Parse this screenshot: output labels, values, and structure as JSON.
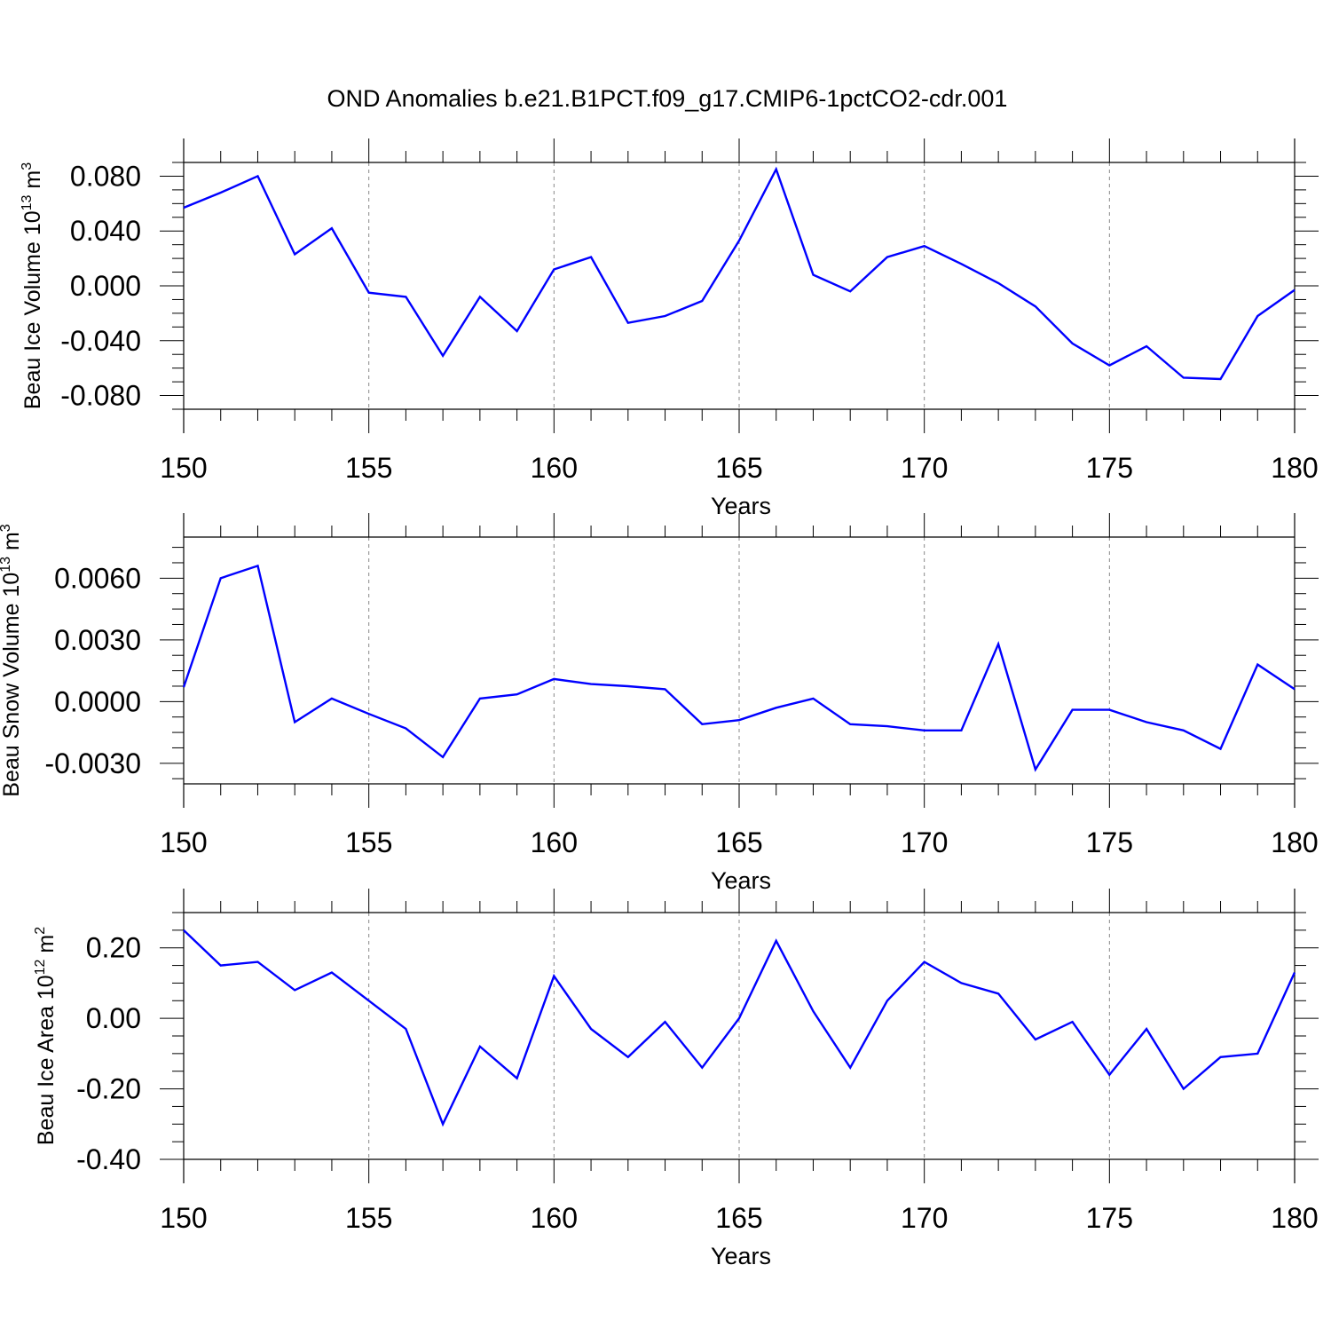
{
  "title": "OND Anomalies b.e21.B1PCT.f09_g17.CMIP6-1pctCO2-cdr.001",
  "line_color": "#0000ff",
  "chart_data": [
    {
      "type": "line",
      "ylabel": {
        "main": "Beau Ice Volume 10",
        "exp": "13",
        "unit": " m",
        "unit_exp": "3"
      },
      "xlabel": "Years",
      "xlim": [
        150,
        180
      ],
      "ylim": [
        -0.09,
        0.09
      ],
      "xticks": [
        "150",
        "155",
        "160",
        "165",
        "170",
        "175",
        "180"
      ],
      "yticks": [
        "0.080",
        "0.040",
        "0.000",
        "-0.040",
        "-0.080"
      ],
      "x": [
        150,
        151,
        152,
        153,
        154,
        155,
        156,
        157,
        158,
        159,
        160,
        161,
        162,
        163,
        164,
        165,
        166,
        167,
        168,
        169,
        170,
        171,
        172,
        173,
        174,
        175,
        176,
        177,
        178,
        179,
        180
      ],
      "values": [
        0.057,
        0.068,
        0.08,
        0.023,
        0.042,
        -0.005,
        -0.008,
        -0.051,
        -0.008,
        -0.033,
        0.012,
        0.021,
        -0.027,
        -0.022,
        -0.011,
        0.033,
        0.085,
        0.008,
        -0.004,
        0.021,
        0.029,
        0.016,
        0.002,
        -0.015,
        -0.042,
        -0.058,
        -0.044,
        -0.067,
        -0.068,
        -0.022,
        -0.003
      ]
    },
    {
      "type": "line",
      "ylabel": {
        "main": "Beau Snow Volume 10",
        "exp": "13",
        "unit": " m",
        "unit_exp": "3"
      },
      "xlabel": "Years",
      "xlim": [
        150,
        180
      ],
      "ylim": [
        -0.004,
        0.008
      ],
      "xticks": [
        "150",
        "155",
        "160",
        "165",
        "170",
        "175",
        "180"
      ],
      "yticks": [
        "0.0060",
        "0.0030",
        "0.0000",
        "-0.0030"
      ],
      "x": [
        150,
        151,
        152,
        153,
        154,
        155,
        156,
        157,
        158,
        159,
        160,
        161,
        162,
        163,
        164,
        165,
        166,
        167,
        168,
        169,
        170,
        171,
        172,
        173,
        174,
        175,
        176,
        177,
        178,
        179,
        180
      ],
      "values": [
        0.0007,
        0.006,
        0.0066,
        -0.001,
        0.00015,
        -0.0006,
        -0.0013,
        -0.0027,
        0.00015,
        0.00035,
        0.0011,
        0.00085,
        0.00075,
        0.0006,
        -0.0011,
        -0.0009,
        -0.0003,
        0.00015,
        -0.0011,
        -0.0012,
        -0.0014,
        -0.0014,
        0.0028,
        -0.0033,
        -0.0004,
        -0.0004,
        -0.001,
        -0.0014,
        -0.0023,
        0.0018,
        0.0006
      ]
    },
    {
      "type": "line",
      "ylabel": {
        "main": "Beau Ice Area 10",
        "exp": "12",
        "unit": " m",
        "unit_exp": "2"
      },
      "xlabel": "Years",
      "xlim": [
        150,
        180
      ],
      "ylim": [
        -0.4,
        0.3
      ],
      "xticks": [
        "150",
        "155",
        "160",
        "165",
        "170",
        "175",
        "180"
      ],
      "yticks": [
        "0.20",
        "0.00",
        "-0.20",
        "-0.40"
      ],
      "x": [
        150,
        151,
        152,
        153,
        154,
        155,
        156,
        157,
        158,
        159,
        160,
        161,
        162,
        163,
        164,
        165,
        166,
        167,
        168,
        169,
        170,
        171,
        172,
        173,
        174,
        175,
        176,
        177,
        178,
        179,
        180
      ],
      "values": [
        0.25,
        0.15,
        0.16,
        0.08,
        0.13,
        0.05,
        -0.03,
        -0.3,
        -0.08,
        -0.17,
        0.12,
        -0.03,
        -0.11,
        -0.01,
        -0.14,
        0.0,
        0.22,
        0.02,
        -0.14,
        0.05,
        0.16,
        0.1,
        0.07,
        -0.06,
        -0.01,
        -0.16,
        -0.03,
        -0.2,
        -0.11,
        -0.1,
        0.13
      ]
    }
  ]
}
